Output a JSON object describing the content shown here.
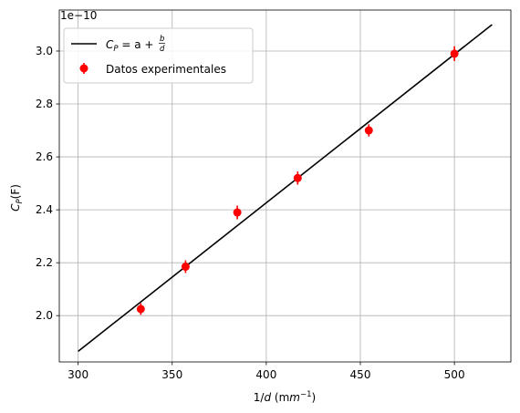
{
  "chart_data": {
    "type": "scatter",
    "xlabel_base": "1/",
    "xlabel_var": "d",
    "xlabel_unit": " (m",
    "xlabel_exp": "−1",
    "xlabel_close": ")",
    "ylabel_main": "C",
    "ylabel_sub": "P",
    "ylabel_arg": "(F)",
    "y_offset_text": "1e−10",
    "xlim": [
      290,
      530
    ],
    "ylim": [
      1.825,
      3.155
    ],
    "y_scale_factor": "1e-10",
    "x_ticks": [
      300,
      350,
      400,
      450,
      500
    ],
    "y_ticks": [
      2.0,
      2.2,
      2.4,
      2.6,
      2.8,
      3.0
    ],
    "x_tick_labels": [
      "300",
      "350",
      "400",
      "450",
      "500"
    ],
    "y_tick_labels": [
      "2.0",
      "2.2",
      "2.4",
      "2.6",
      "2.8",
      "3.0"
    ],
    "grid": true,
    "legend_position": "top-left",
    "series": [
      {
        "name": "Datos experimentales",
        "kind": "errorbar",
        "color": "#ff0000",
        "x": [
          333.3,
          357.1,
          384.6,
          416.7,
          454.5,
          500.0
        ],
        "y": [
          2.025,
          2.185,
          2.39,
          2.52,
          2.7,
          2.99
        ],
        "yerr": [
          0.022,
          0.024,
          0.026,
          0.025,
          0.023,
          0.028
        ]
      },
      {
        "name_main": "C",
        "name_sub": "P",
        "name_eq": " = a + ",
        "name_frac_num": "b",
        "name_frac_den": "d",
        "kind": "line",
        "color": "#000000",
        "x": [
          300,
          520
        ],
        "y": [
          1.865,
          3.1
        ]
      }
    ]
  }
}
